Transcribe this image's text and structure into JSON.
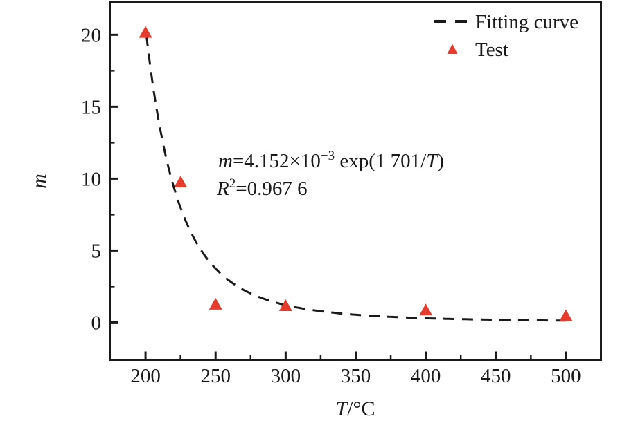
{
  "figure": {
    "background": "#ffffff",
    "ink_color": "#1a1a1a",
    "accent_red": "#e53c2e"
  },
  "chart_data": {
    "type": "scatter",
    "title": "",
    "xlabel_segments": [
      {
        "text": "T",
        "italic": true
      },
      {
        "text": "/°C",
        "italic": false
      }
    ],
    "ylabel_segments": [
      {
        "text": "m",
        "italic": true
      }
    ],
    "xlim": [
      174.5,
      525
    ],
    "ylim": [
      -2.6,
      22.3
    ],
    "x_major_ticks": [
      200,
      250,
      300,
      350,
      400,
      450,
      500
    ],
    "x_minor_ticks": [
      225,
      275,
      325,
      375,
      425,
      475
    ],
    "y_major_ticks": [
      0,
      5,
      10,
      15,
      20
    ],
    "y_minor_ticks": [
      2.5,
      7.5,
      12.5,
      17.5
    ],
    "grid": false,
    "series": [
      {
        "name": "Fitting curve",
        "type": "line",
        "line_style": "dashed",
        "color": "#1a1a1a",
        "formula_text": "m = 4.152e-3 * exp(1701/T)",
        "coef_a": 0.004152,
        "coef_b": 1701,
        "x_range": [
          200,
          500
        ]
      },
      {
        "name": "Test",
        "type": "scatter",
        "marker": "triangle",
        "color": "#e53c2e",
        "x": [
          200,
          225,
          250,
          300,
          400,
          500
        ],
        "y": [
          20.2,
          9.8,
          1.3,
          1.2,
          0.9,
          0.5
        ]
      }
    ],
    "annotation": {
      "line1_segments": [
        {
          "text": "m",
          "italic": true
        },
        {
          "text": "=4.152×10",
          "italic": false
        },
        {
          "text": "−3",
          "sup": true
        },
        {
          "text": " exp(1 701/",
          "italic": false
        },
        {
          "text": "T",
          "italic": true
        },
        {
          "text": ")",
          "italic": false
        }
      ],
      "line2_segments": [
        {
          "text": "R",
          "italic": true
        },
        {
          "text": "2",
          "sup": true
        },
        {
          "text": "=0.967 6",
          "italic": false
        }
      ]
    },
    "legend": {
      "position": "top-right",
      "items": [
        {
          "label": "Fitting curve",
          "marker": "dashed-line"
        },
        {
          "label": "Test",
          "marker": "triangle"
        }
      ]
    }
  }
}
